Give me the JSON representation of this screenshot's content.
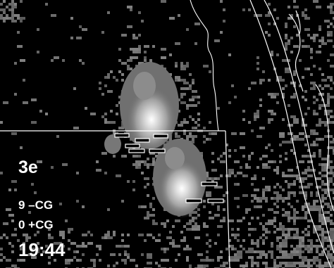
{
  "panel": {
    "label": "3e",
    "negative_cg": "9 –CG",
    "positive_cg": "0 +CG",
    "time": "19:44"
  },
  "colors": {
    "background": "#000000",
    "echo_weak": "#6b6b6b",
    "echo_core": "#ffffff",
    "boundary": "#ffffff"
  },
  "map_features": {
    "layer": "radar-reflectivity",
    "lightning_markers": "cloud-to-ground-flash-markers"
  }
}
